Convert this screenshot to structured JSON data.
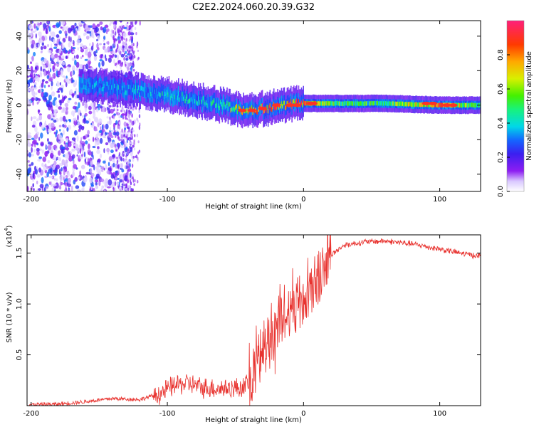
{
  "title": "C2E2.2024.060.20.39.G32",
  "chart_data": [
    {
      "type": "heatmap",
      "xlabel": "Height of straight line (km)",
      "ylabel": "Frequency (Hz)",
      "xlim": [
        -203,
        130
      ],
      "ylim": [
        -50,
        49
      ],
      "xticks": [
        "-200",
        "-100",
        "0",
        "100"
      ],
      "xtick_values": [
        -200,
        -100,
        0,
        100
      ],
      "yticks": [
        "40",
        "20",
        "0",
        "-20",
        "-40"
      ],
      "ytick_values": [
        40,
        20,
        0,
        -20,
        -40
      ],
      "colorbar": {
        "label": "Normalized spectral amplitude",
        "range": [
          0,
          1
        ],
        "ticks": [
          "0.0",
          "0.2",
          "0.4",
          "0.6",
          "0.8"
        ],
        "tick_values": [
          0.0,
          0.2,
          0.4,
          0.6,
          0.8
        ]
      },
      "ridge": {
        "x": [
          -160,
          -140,
          -120,
          -100,
          -80,
          -60,
          -45,
          -30,
          -15,
          0,
          20,
          60,
          100,
          130
        ],
        "frequency": [
          12,
          10,
          8,
          6,
          3,
          0,
          -3,
          -2,
          0,
          1,
          1,
          1,
          0,
          0
        ],
        "amplitude": [
          0.35,
          0.4,
          0.42,
          0.45,
          0.45,
          0.5,
          0.8,
          0.9,
          0.9,
          0.95,
          0.6,
          0.55,
          0.95,
          0.5
        ]
      },
      "noise_band_x": [
        -203,
        -125
      ]
    },
    {
      "type": "line",
      "xlabel": "Height of straight line (km)",
      "ylabel": "SNR (10 * v/v)",
      "scale_label": "(x10",
      "scale_exponent": "4",
      "xlim": [
        -203,
        130
      ],
      "ylim": [
        0,
        16800
      ],
      "xticks": [
        "-200",
        "-100",
        "0",
        "100"
      ],
      "xtick_values": [
        -200,
        -100,
        0,
        100
      ],
      "yticks": [
        "0.5",
        "1.0",
        "1.5"
      ],
      "ytick_values": [
        5000,
        10000,
        15000
      ],
      "color": "#e8322e",
      "x": [
        -203,
        -180,
        -160,
        -140,
        -120,
        -105,
        -95,
        -85,
        -75,
        -65,
        -55,
        -45,
        -38,
        -30,
        -20,
        -10,
        0,
        10,
        20,
        30,
        45,
        60,
        80,
        100,
        115,
        130
      ],
      "y": [
        100,
        150,
        400,
        700,
        600,
        1200,
        2000,
        2200,
        1800,
        1700,
        1700,
        1800,
        2600,
        5500,
        8000,
        9500,
        10500,
        12200,
        14800,
        15800,
        16100,
        16200,
        15900,
        15400,
        15000,
        14700
      ]
    }
  ]
}
